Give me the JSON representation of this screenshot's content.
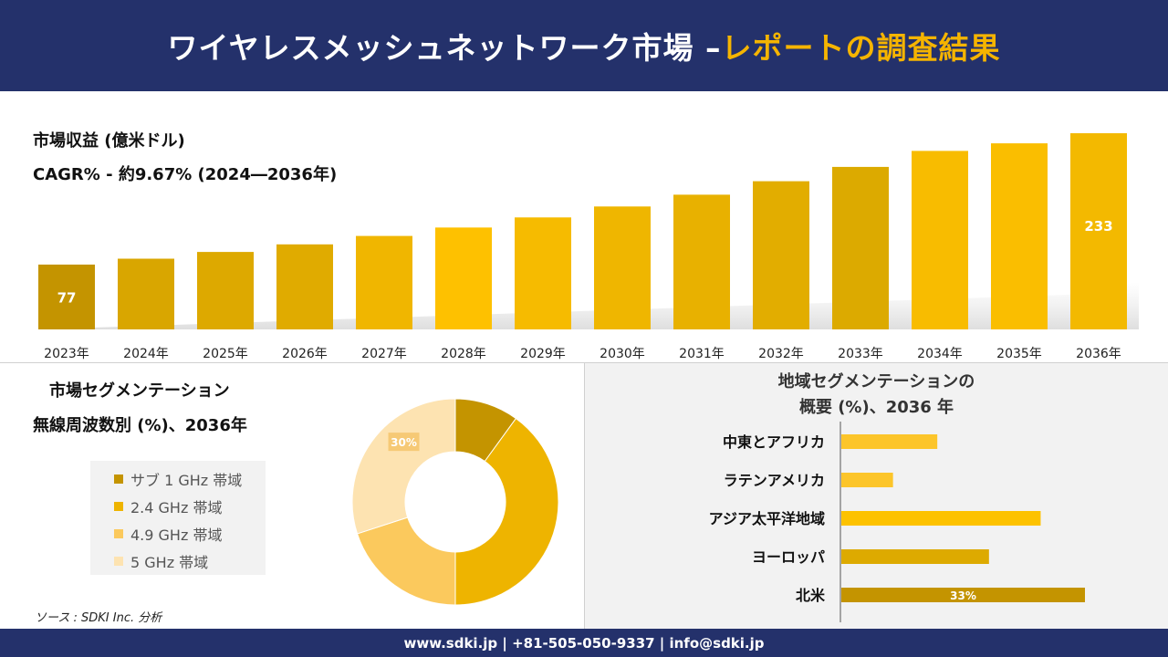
{
  "header": {
    "title_main": "ワイヤレスメッシュネットワーク市場 –",
    "title_highlight": "レポートの調査結果"
  },
  "revenue": {
    "label": "市場収益 (億米ドル)",
    "cagr": "CAGR% - 約9.67% (2024―2036年)"
  },
  "segmentation": {
    "title": "市場セグメンテーション",
    "subtitle": "無線周波数別 (%)、2036年",
    "legend": [
      {
        "label": "サブ 1 GHz 帯域",
        "color": "#c49400"
      },
      {
        "label": "2.4 GHz 帯域",
        "color": "#eeb400"
      },
      {
        "label": "4.9 GHz 帯域",
        "color": "#fbc95d"
      },
      {
        "label": "5 GHz 帯域",
        "color": "#fde3b1"
      }
    ]
  },
  "regional": {
    "title_line1": "地域セグメンテーションの",
    "title_line2": "概要 (%)、2036 年"
  },
  "source": "ソース : SDKI Inc. 分析",
  "footer": "www.sdki.jp | +81-505-050-9337 | info@sdki.jp",
  "chart_data": [
    {
      "type": "bar",
      "categories": [
        "2023年",
        "2024年",
        "2025年",
        "2026年",
        "2027年",
        "2028年",
        "2029年",
        "2030年",
        "2031年",
        "2032年",
        "2033年",
        "2034年",
        "2035年",
        "2036年"
      ],
      "values": [
        77,
        84,
        92,
        101,
        111,
        121,
        133,
        146,
        160,
        176,
        193,
        212,
        221,
        233
      ],
      "data_labels": {
        "0": "77",
        "13": "233"
      },
      "title": "市場収益 (億米ドル)",
      "subtitle": "CAGR% - 約9.67% (2024―2036年)"
    },
    {
      "type": "pie",
      "subtype": "donut",
      "categories": [
        "サブ 1 GHz 帯域",
        "2.4 GHz 帯域",
        "4.9 GHz 帯域",
        "5 GHz 帯域"
      ],
      "values": [
        10,
        40,
        20,
        30
      ],
      "data_labels": {
        "3": "30%"
      },
      "colors": [
        "#c49400",
        "#eeb400",
        "#fbc95d",
        "#fde3b1"
      ],
      "title": "市場セグメンテーション",
      "subtitle": "無線周波数別 (%)、2036年"
    },
    {
      "type": "bar",
      "orientation": "horizontal",
      "categories": [
        "中東とアフリカ",
        "ラテンアメリカ",
        "アジア太平洋地域",
        "ヨーロッパ",
        "北米"
      ],
      "values": [
        13,
        7,
        27,
        20,
        33
      ],
      "data_labels": {
        "4": "33%"
      },
      "colors": [
        "#fcc52a",
        "#fcc52a",
        "#fdc200",
        "#ddaa00",
        "#c49400"
      ],
      "title": "地域セグメンテーションの 概要 (%)、2036 年"
    }
  ]
}
